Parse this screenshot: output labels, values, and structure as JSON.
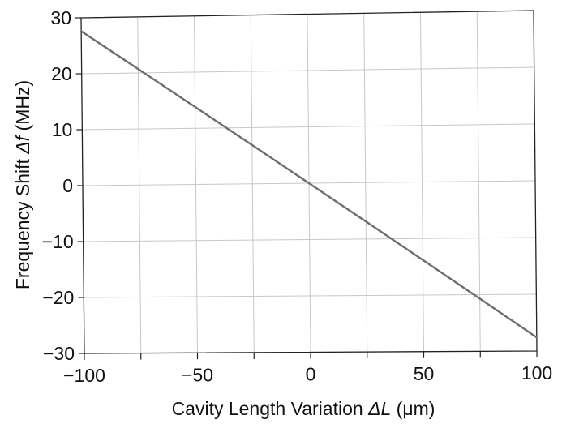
{
  "chart_data": {
    "type": "line",
    "xlabel": {
      "pre": "Cavity Length Variation ",
      "sym": "ΔL",
      "post": " (μm)"
    },
    "ylabel": {
      "pre": "Frequency Shift ",
      "sym": "Δf",
      "post": " (MHz)"
    },
    "xlim": [
      -100,
      100
    ],
    "ylim": [
      -30,
      30
    ],
    "x_ticks": [
      -100,
      -50,
      0,
      50,
      100
    ],
    "x_tick_labels": [
      "−100",
      "−50",
      "0",
      "50",
      "100"
    ],
    "x_minor_step": 25,
    "y_ticks": [
      30,
      20,
      10,
      0,
      -10,
      -20,
      -30
    ],
    "y_tick_labels": [
      "30",
      "20",
      "10",
      "0",
      "−10",
      "−20",
      "−30"
    ],
    "grid": true,
    "series": [
      {
        "x": [
          -100,
          -75,
          -50,
          -25,
          0,
          25,
          50,
          75,
          100
        ],
        "y": [
          27.6,
          20.7,
          13.8,
          6.9,
          0,
          -6.9,
          -13.8,
          -20.7,
          -27.6
        ],
        "color": "#6e6e6e"
      }
    ]
  }
}
